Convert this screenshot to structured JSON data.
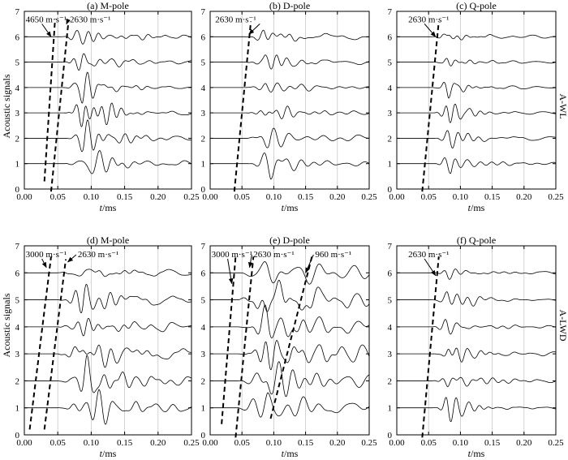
{
  "figure": {
    "ylabel": "Acoustic signals",
    "xlabel_italic": "t",
    "xlabel_unit": "/ms",
    "row_labels": [
      "A-WL",
      "A-LWD"
    ]
  },
  "chart_data": [
    {
      "type": "line",
      "title": "(a) M-pole",
      "xlabel": "t/ms",
      "ylabel": "Acoustic signals",
      "xlim": [
        0,
        0.25
      ],
      "ylim": [
        0,
        7
      ],
      "xticks": [
        "0.00",
        "0.05",
        "0.10",
        "0.15",
        "0.20",
        "0.25"
      ],
      "yticks": [
        "0",
        "1",
        "2",
        "3",
        "4",
        "5",
        "6",
        "7"
      ],
      "grid": "vertical",
      "traces": [
        {
          "baseline": 1,
          "onset": 0.06,
          "peak": 0.09,
          "amp": 0.8,
          "dom_freq": 55,
          "decay": 0.04,
          "tail_amp": 0.08
        },
        {
          "baseline": 2,
          "onset": 0.06,
          "peak": 0.09,
          "amp": 0.8,
          "dom_freq": 55,
          "decay": 0.04,
          "tail_amp": 0.08
        },
        {
          "baseline": 3,
          "onset": 0.058,
          "peak": 0.088,
          "amp": 0.75,
          "dom_freq": 55,
          "decay": 0.04,
          "tail_amp": 0.08
        },
        {
          "baseline": 4,
          "onset": 0.057,
          "peak": 0.087,
          "amp": 0.7,
          "dom_freq": 55,
          "decay": 0.04,
          "tail_amp": 0.08
        },
        {
          "baseline": 5,
          "onset": 0.056,
          "peak": 0.086,
          "amp": 0.6,
          "dom_freq": 55,
          "decay": 0.04,
          "tail_amp": 0.08
        },
        {
          "baseline": 6,
          "onset": 0.055,
          "peak": 0.085,
          "amp": 0.55,
          "dom_freq": 55,
          "decay": 0.04,
          "tail_amp": 0.08
        }
      ],
      "dashed_lines": [
        {
          "x": [
            0.03,
            0.046
          ],
          "y": [
            0.3,
            6.7
          ]
        },
        {
          "x": [
            0.04,
            0.066
          ],
          "y": [
            -0.1,
            6.6
          ]
        }
      ],
      "annotations": [
        {
          "text": "4650 m·s⁻¹",
          "x": 0.002,
          "y": 6.7,
          "arrow_to": [
            0.04,
            6.0
          ]
        },
        {
          "text": "2630 m·s⁻¹",
          "x": 0.068,
          "y": 6.7,
          "arrow_to": [
            0.063,
            6.5
          ]
        }
      ]
    },
    {
      "type": "line",
      "title": "(b) D-pole",
      "xlabel": "t/ms",
      "ylabel": "",
      "xlim": [
        0,
        0.25
      ],
      "ylim": [
        0,
        7
      ],
      "xticks": [
        "0.00",
        "0.05",
        "0.10",
        "0.15",
        "0.20",
        "0.25"
      ],
      "yticks": [
        "0",
        "1",
        "2",
        "3",
        "4",
        "5",
        "6",
        "7"
      ],
      "grid": "vertical",
      "traces": [
        {
          "baseline": 1,
          "onset": 0.06,
          "peak": 0.095,
          "amp": 0.8,
          "dom_freq": 50,
          "decay": 0.04,
          "tail_amp": 0.1
        },
        {
          "baseline": 2,
          "onset": 0.058,
          "peak": 0.093,
          "amp": 0.75,
          "dom_freq": 50,
          "decay": 0.04,
          "tail_amp": 0.1
        },
        {
          "baseline": 3,
          "onset": 0.057,
          "peak": 0.09,
          "amp": 0.6,
          "dom_freq": 50,
          "decay": 0.04,
          "tail_amp": 0.1
        },
        {
          "baseline": 4,
          "onset": 0.056,
          "peak": 0.088,
          "amp": 0.45,
          "dom_freq": 50,
          "decay": 0.04,
          "tail_amp": 0.1
        },
        {
          "baseline": 5,
          "onset": 0.055,
          "peak": 0.086,
          "amp": 0.38,
          "dom_freq": 50,
          "decay": 0.04,
          "tail_amp": 0.1
        },
        {
          "baseline": 6,
          "onset": 0.055,
          "peak": 0.085,
          "amp": 0.3,
          "dom_freq": 50,
          "decay": 0.04,
          "tail_amp": 0.1
        }
      ],
      "dashed_lines": [
        {
          "x": [
            0.038,
            0.064
          ],
          "y": [
            -0.1,
            6.6
          ]
        }
      ],
      "annotations": [
        {
          "text": "2630 m·s⁻¹",
          "x": 0.008,
          "y": 6.7,
          "arrow_to": [
            0.061,
            6.1
          ]
        }
      ]
    },
    {
      "type": "line",
      "title": "(c) Q-pole",
      "xlabel": "t/ms",
      "ylabel": "",
      "xlim": [
        0,
        0.25
      ],
      "ylim": [
        0,
        7
      ],
      "xticks": [
        "0.00",
        "0.05",
        "0.10",
        "0.15",
        "0.20",
        "0.25"
      ],
      "yticks": [
        "0",
        "1",
        "2",
        "3",
        "4",
        "5",
        "6",
        "7"
      ],
      "grid": "vertical",
      "traces": [
        {
          "baseline": 1,
          "onset": 0.06,
          "peak": 0.085,
          "amp": 0.8,
          "dom_freq": 55,
          "decay": 0.03,
          "tail_amp": 0.05
        },
        {
          "baseline": 2,
          "onset": 0.058,
          "peak": 0.083,
          "amp": 0.7,
          "dom_freq": 55,
          "decay": 0.03,
          "tail_amp": 0.05
        },
        {
          "baseline": 3,
          "onset": 0.057,
          "peak": 0.082,
          "amp": 0.55,
          "dom_freq": 55,
          "decay": 0.03,
          "tail_amp": 0.05
        },
        {
          "baseline": 4,
          "onset": 0.056,
          "peak": 0.081,
          "amp": 0.4,
          "dom_freq": 55,
          "decay": 0.03,
          "tail_amp": 0.05
        },
        {
          "baseline": 5,
          "onset": 0.055,
          "peak": 0.08,
          "amp": 0.3,
          "dom_freq": 55,
          "decay": 0.03,
          "tail_amp": 0.05
        },
        {
          "baseline": 6,
          "onset": 0.055,
          "peak": 0.08,
          "amp": 0.22,
          "dom_freq": 55,
          "decay": 0.03,
          "tail_amp": 0.05
        }
      ],
      "dashed_lines": [
        {
          "x": [
            0.04,
            0.066
          ],
          "y": [
            -0.1,
            6.6
          ]
        }
      ],
      "annotations": [
        {
          "text": "2630 m·s⁻¹",
          "x": 0.018,
          "y": 6.7,
          "arrow_to": [
            0.061,
            6.0
          ]
        }
      ]
    },
    {
      "type": "line",
      "title": "(d) M-pole",
      "xlabel": "t/ms",
      "ylabel": "Acoustic signals",
      "xlim": [
        0,
        0.25
      ],
      "ylim": [
        0,
        7
      ],
      "xticks": [
        "0.00",
        "0.05",
        "0.10",
        "0.15",
        "0.20",
        "0.25"
      ],
      "yticks": [
        "0",
        "1",
        "2",
        "3",
        "4",
        "5",
        "6",
        "7"
      ],
      "grid": "vertical",
      "traces": [
        {
          "baseline": 1,
          "onset": 0.05,
          "peak": 0.095,
          "amp": 0.8,
          "dom_freq": 55,
          "decay": 0.05,
          "tail_amp": 0.15
        },
        {
          "baseline": 2,
          "onset": 0.05,
          "peak": 0.093,
          "amp": 0.8,
          "dom_freq": 55,
          "decay": 0.05,
          "tail_amp": 0.15
        },
        {
          "baseline": 3,
          "onset": 0.05,
          "peak": 0.092,
          "amp": 0.75,
          "dom_freq": 55,
          "decay": 0.05,
          "tail_amp": 0.15
        },
        {
          "baseline": 4,
          "onset": 0.05,
          "peak": 0.09,
          "amp": 0.7,
          "dom_freq": 55,
          "decay": 0.05,
          "tail_amp": 0.15
        },
        {
          "baseline": 5,
          "onset": 0.05,
          "peak": 0.088,
          "amp": 0.55,
          "dom_freq": 55,
          "decay": 0.05,
          "tail_amp": 0.15
        },
        {
          "baseline": 6,
          "onset": 0.05,
          "peak": 0.088,
          "amp": 0.2,
          "dom_freq": 55,
          "decay": 0.05,
          "tail_amp": 0.15
        }
      ],
      "dashed_lines": [
        {
          "x": [
            0.008,
            0.04
          ],
          "y": [
            0.2,
            6.6
          ]
        },
        {
          "x": [
            0.03,
            0.062
          ],
          "y": [
            0.2,
            6.5
          ]
        }
      ],
      "annotations": [
        {
          "text": "3000 m·s⁻¹",
          "x": 0.002,
          "y": 6.7,
          "arrow_to": [
            0.033,
            6.2
          ]
        },
        {
          "text": "2630 m·s⁻¹",
          "x": 0.08,
          "y": 6.7,
          "arrow_to": [
            0.065,
            6.4
          ]
        }
      ]
    },
    {
      "type": "line",
      "title": "(e) D-pole",
      "xlabel": "t/ms",
      "ylabel": "",
      "xlim": [
        0,
        0.25
      ],
      "ylim": [
        0,
        7
      ],
      "xticks": [
        "0.00",
        "0.05",
        "0.10",
        "0.15",
        "0.20",
        "0.25"
      ],
      "yticks": [
        "0",
        "1",
        "2",
        "3",
        "4",
        "5",
        "6",
        "7"
      ],
      "grid": "vertical",
      "traces": [
        {
          "baseline": 1,
          "onset": 0.045,
          "peak": 0.09,
          "amp": 0.8,
          "dom_freq": 48,
          "decay": 0.06,
          "tail_amp": 0.3
        },
        {
          "baseline": 2,
          "onset": 0.045,
          "peak": 0.09,
          "amp": 0.8,
          "dom_freq": 48,
          "decay": 0.06,
          "tail_amp": 0.3
        },
        {
          "baseline": 3,
          "onset": 0.045,
          "peak": 0.09,
          "amp": 0.75,
          "dom_freq": 48,
          "decay": 0.06,
          "tail_amp": 0.3
        },
        {
          "baseline": 4,
          "onset": 0.045,
          "peak": 0.09,
          "amp": 0.7,
          "dom_freq": 48,
          "decay": 0.06,
          "tail_amp": 0.3
        },
        {
          "baseline": 5,
          "onset": 0.045,
          "peak": 0.09,
          "amp": 0.55,
          "dom_freq": 48,
          "decay": 0.06,
          "tail_amp": 0.3
        },
        {
          "baseline": 6,
          "onset": 0.045,
          "peak": 0.09,
          "amp": 0.35,
          "dom_freq": 48,
          "decay": 0.06,
          "tail_amp": 0.35
        }
      ],
      "dashed_lines": [
        {
          "x": [
            0.018,
            0.04
          ],
          "y": [
            0.4,
            6.6
          ]
        },
        {
          "x": [
            0.04,
            0.068
          ],
          "y": [
            -0.1,
            6.6
          ]
        },
        {
          "x": [
            0.095,
            0.16
          ],
          "y": [
            0.6,
            6.6
          ]
        }
      ],
      "annotations": [
        {
          "text": "3000 m·s⁻¹",
          "x": 0.002,
          "y": 6.7,
          "arrow_to": [
            0.034,
            5.6
          ]
        },
        {
          "text": "2630 m·s⁻¹",
          "x": 0.068,
          "y": 6.7,
          "arrow_to": [
            0.062,
            6.2
          ]
        },
        {
          "text": "960 m·s⁻¹",
          "x": 0.165,
          "y": 6.7,
          "arrow_to": [
            0.15,
            6.0
          ]
        }
      ]
    },
    {
      "type": "line",
      "title": "(f) Q-pole",
      "xlabel": "t/ms",
      "ylabel": "",
      "xlim": [
        0,
        0.25
      ],
      "ylim": [
        0,
        7
      ],
      "xticks": [
        "0.00",
        "0.05",
        "0.10",
        "0.15",
        "0.20",
        "0.25"
      ],
      "yticks": [
        "0",
        "1",
        "2",
        "3",
        "4",
        "5",
        "6",
        "7"
      ],
      "grid": "vertical",
      "traces": [
        {
          "baseline": 1,
          "onset": 0.055,
          "peak": 0.08,
          "amp": 0.55,
          "dom_freq": 55,
          "decay": 0.04,
          "tail_amp": 0.06
        },
        {
          "baseline": 2,
          "onset": 0.055,
          "peak": 0.08,
          "amp": 0.5,
          "dom_freq": 55,
          "decay": 0.04,
          "tail_amp": 0.06
        },
        {
          "baseline": 3,
          "onset": 0.055,
          "peak": 0.08,
          "amp": 0.45,
          "dom_freq": 55,
          "decay": 0.04,
          "tail_amp": 0.06
        },
        {
          "baseline": 4,
          "onset": 0.055,
          "peak": 0.08,
          "amp": 0.4,
          "dom_freq": 55,
          "decay": 0.04,
          "tail_amp": 0.06
        },
        {
          "baseline": 5,
          "onset": 0.055,
          "peak": 0.08,
          "amp": 0.38,
          "dom_freq": 55,
          "decay": 0.04,
          "tail_amp": 0.06
        },
        {
          "baseline": 6,
          "onset": 0.055,
          "peak": 0.08,
          "amp": 0.38,
          "dom_freq": 55,
          "decay": 0.04,
          "tail_amp": 0.06
        }
      ],
      "dashed_lines": [
        {
          "x": [
            0.04,
            0.066
          ],
          "y": [
            -0.1,
            6.6
          ]
        }
      ],
      "annotations": [
        {
          "text": "2630 m·s⁻¹",
          "x": 0.018,
          "y": 6.7,
          "arrow_to": [
            0.061,
            5.9
          ]
        }
      ]
    }
  ]
}
